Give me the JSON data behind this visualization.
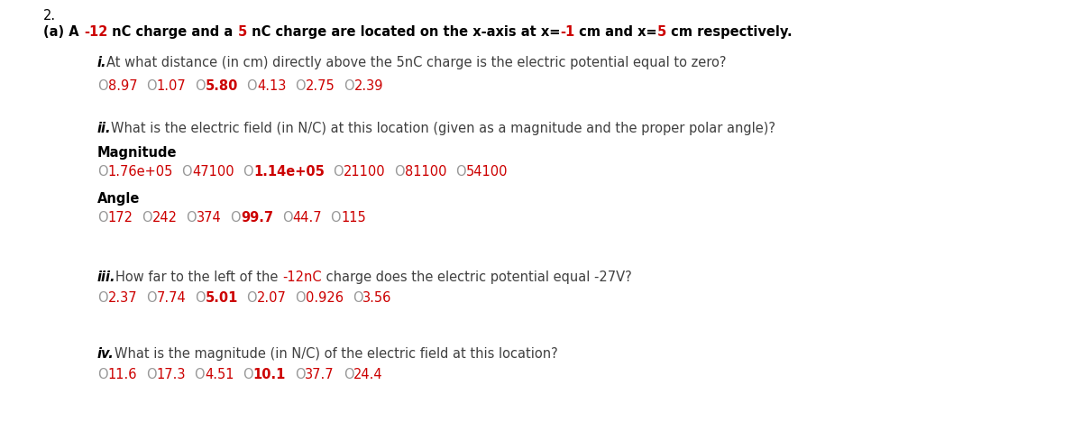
{
  "figsize": [
    12.0,
    4.68
  ],
  "dpi": 100,
  "background_color": "#ffffff",
  "question_number": "2.",
  "part_a_segments": [
    [
      "(a) A ",
      "black"
    ],
    [
      "-12",
      "#cc0000"
    ],
    [
      " nC charge and a ",
      "black"
    ],
    [
      "5",
      "#cc0000"
    ],
    [
      " nC charge are located on the x-axis at x=",
      "black"
    ],
    [
      "-1",
      "#cc0000"
    ],
    [
      " cm and x=",
      "black"
    ],
    [
      "5",
      "#cc0000"
    ],
    [
      " cm respectively.",
      "black"
    ]
  ],
  "sub_i_label": "i.",
  "sub_i_text": "At what distance (in cm) directly above the 5nC charge is the electric potential equal to zero?",
  "sub_i_options": [
    "8.97",
    "1.07",
    "5.80",
    "4.13",
    "2.75",
    "2.39"
  ],
  "sub_i_correct": "5.80",
  "sub_ii_label": "ii.",
  "sub_ii_text": "What is the electric field (in N/C) at this location (given as a magnitude and the proper polar angle)?",
  "magnitude_label": "Magnitude",
  "magnitude_options": [
    "1.76e+05",
    "47100",
    "1.14e+05",
    "21100",
    "81100",
    "54100"
  ],
  "magnitude_correct": "1.14e+05",
  "angle_label": "Angle",
  "angle_options": [
    "172",
    "242",
    "374",
    "99.7",
    "44.7",
    "115"
  ],
  "angle_correct": "99.7",
  "sub_iii_label": "iii.",
  "sub_iii_text_segments": [
    [
      "How far to the left of the ",
      "#404040"
    ],
    [
      "-12nC",
      "#cc0000"
    ],
    [
      " charge does the electric potential equal -27V?",
      "#404040"
    ]
  ],
  "sub_iii_options": [
    "2.37",
    "7.74",
    "5.01",
    "2.07",
    "0.926",
    "3.56"
  ],
  "sub_iii_correct": "5.01",
  "sub_iv_label": "iv.",
  "sub_iv_text": "What is the magnitude (in N/C) of the electric field at this location?",
  "sub_iv_options": [
    "11.6",
    "17.3",
    "4.51",
    "10.1",
    "37.7",
    "24.4"
  ],
  "sub_iv_correct": "10.1",
  "circle_color": "#999999",
  "option_text_color": "#cc0000",
  "label_color": "#404040",
  "bold_label_color": "#333333"
}
